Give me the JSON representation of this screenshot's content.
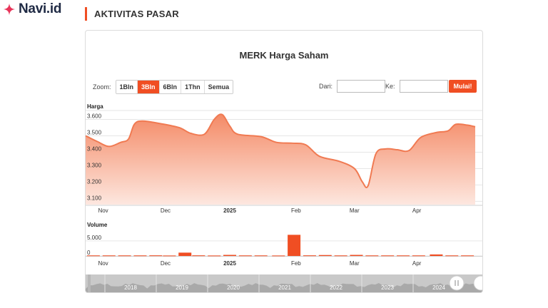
{
  "brand": {
    "name": "Navi.id",
    "color": "#f04e23"
  },
  "section": {
    "title": "AKTIVITAS PASAR"
  },
  "chart": {
    "title": "MERK Harga Saham",
    "zoom_label": "Zoom:",
    "zoom_buttons": [
      {
        "label": "1Bln",
        "active": false
      },
      {
        "label": "3Bln",
        "active": true
      },
      {
        "label": "6Bln",
        "active": false
      },
      {
        "label": "1Thn",
        "active": false
      },
      {
        "label": "Semua",
        "active": false
      }
    ],
    "from_label": "Dari:",
    "to_label": "Ke:",
    "from_value": "",
    "to_value": "",
    "go_label": "Mulai!"
  },
  "chart_data": {
    "type": "area",
    "price_label": "Harga",
    "volume_label": "Volume",
    "price_ticks": [
      "3.600",
      "3.500",
      "3.400",
      "3.300",
      "3.200",
      "3.100"
    ],
    "price_tick_values": [
      3600,
      3500,
      3400,
      3300,
      3200,
      3100
    ],
    "price_ylim": [
      3080,
      3650
    ],
    "volume_ticks": [
      "5.000",
      "0"
    ],
    "volume_tick_values": [
      5000,
      0
    ],
    "volume_ylim": [
      0,
      8500
    ],
    "x_labels": [
      {
        "t": 0.045,
        "label": "Nov",
        "bold": false
      },
      {
        "t": 0.205,
        "label": "Dec",
        "bold": false
      },
      {
        "t": 0.37,
        "label": "2025",
        "bold": true
      },
      {
        "t": 0.54,
        "label": "Feb",
        "bold": false
      },
      {
        "t": 0.69,
        "label": "Mar",
        "bold": false
      },
      {
        "t": 0.85,
        "label": "Apr",
        "bold": false
      }
    ],
    "price_series": [
      [
        0.0,
        3500
      ],
      [
        0.03,
        3465
      ],
      [
        0.06,
        3435
      ],
      [
        0.09,
        3460
      ],
      [
        0.11,
        3480
      ],
      [
        0.125,
        3570
      ],
      [
        0.145,
        3590
      ],
      [
        0.19,
        3575
      ],
      [
        0.24,
        3550
      ],
      [
        0.27,
        3515
      ],
      [
        0.305,
        3510
      ],
      [
        0.33,
        3600
      ],
      [
        0.35,
        3630
      ],
      [
        0.37,
        3560
      ],
      [
        0.39,
        3510
      ],
      [
        0.45,
        3495
      ],
      [
        0.49,
        3460
      ],
      [
        0.53,
        3455
      ],
      [
        0.565,
        3445
      ],
      [
        0.6,
        3375
      ],
      [
        0.65,
        3345
      ],
      [
        0.69,
        3300
      ],
      [
        0.71,
        3220
      ],
      [
        0.725,
        3195
      ],
      [
        0.745,
        3390
      ],
      [
        0.77,
        3420
      ],
      [
        0.8,
        3415
      ],
      [
        0.83,
        3410
      ],
      [
        0.86,
        3490
      ],
      [
        0.9,
        3520
      ],
      [
        0.93,
        3530
      ],
      [
        0.95,
        3570
      ],
      [
        0.98,
        3565
      ],
      [
        1.0,
        3555
      ]
    ],
    "volume_series": [
      [
        0.02,
        180
      ],
      [
        0.06,
        180
      ],
      [
        0.1,
        180
      ],
      [
        0.14,
        180
      ],
      [
        0.18,
        200
      ],
      [
        0.215,
        150
      ],
      [
        0.255,
        1100
      ],
      [
        0.29,
        200
      ],
      [
        0.33,
        150
      ],
      [
        0.37,
        350
      ],
      [
        0.41,
        180
      ],
      [
        0.45,
        180
      ],
      [
        0.495,
        150
      ],
      [
        0.535,
        7000
      ],
      [
        0.575,
        200
      ],
      [
        0.615,
        300
      ],
      [
        0.655,
        180
      ],
      [
        0.695,
        350
      ],
      [
        0.735,
        180
      ],
      [
        0.775,
        180
      ],
      [
        0.815,
        180
      ],
      [
        0.855,
        180
      ],
      [
        0.9,
        500
      ],
      [
        0.94,
        180
      ],
      [
        0.98,
        180
      ]
    ],
    "navigator_labels": [
      "2018",
      "2019",
      "2020",
      "2021",
      "2022",
      "2023",
      "2024"
    ],
    "colors": {
      "line": "#f07a52",
      "fill_top": "#f48a66",
      "fill_bottom": "#fde7df",
      "volume": "#f04e23",
      "navigator_bg": "#c9c9c9",
      "navigator_series": "#a9a9a9"
    },
    "grid": true
  }
}
